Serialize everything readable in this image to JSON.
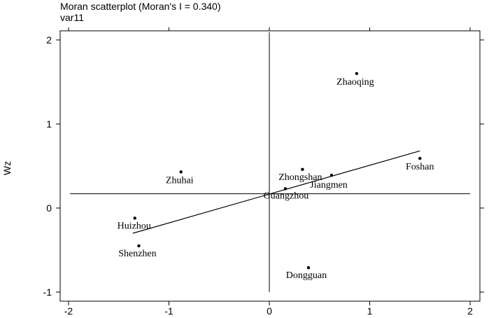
{
  "chart_data": {
    "type": "scatter",
    "title": "Moran scatterplot (Moran's I = 0.340)",
    "subtitle": "var11",
    "xlabel": "",
    "ylabel": "Wz",
    "xlim": [
      -2,
      2
    ],
    "ylim": [
      -1,
      2
    ],
    "x_ticks": [
      -2,
      -1,
      0,
      1,
      2
    ],
    "y_ticks": [
      -1,
      0,
      1,
      2
    ],
    "grid": false,
    "points": [
      {
        "label": "Zhaoqing",
        "x": 0.87,
        "y": 1.6
      },
      {
        "label": "Foshan",
        "x": 1.5,
        "y": 0.59
      },
      {
        "label": "Zhongshan",
        "x": 0.33,
        "y": 0.46
      },
      {
        "label": "Jiangmen",
        "x": 0.62,
        "y": 0.39
      },
      {
        "label": "Guangzhou",
        "x": 0.16,
        "y": 0.23
      },
      {
        "label": "Zhuhai",
        "x": -0.88,
        "y": 0.43
      },
      {
        "label": "Huizhou",
        "x": -1.34,
        "y": -0.12
      },
      {
        "label": "Shenzhen",
        "x": -1.3,
        "y": -0.45
      },
      {
        "label": "Dongguan",
        "x": 0.39,
        "y": -0.71
      }
    ],
    "regression_line": {
      "x": [
        -1.36,
        1.5
      ],
      "y": [
        -0.3,
        0.68
      ]
    },
    "reference_lines": {
      "vertical_x": 0,
      "horizontal_y": 0.17
    }
  }
}
